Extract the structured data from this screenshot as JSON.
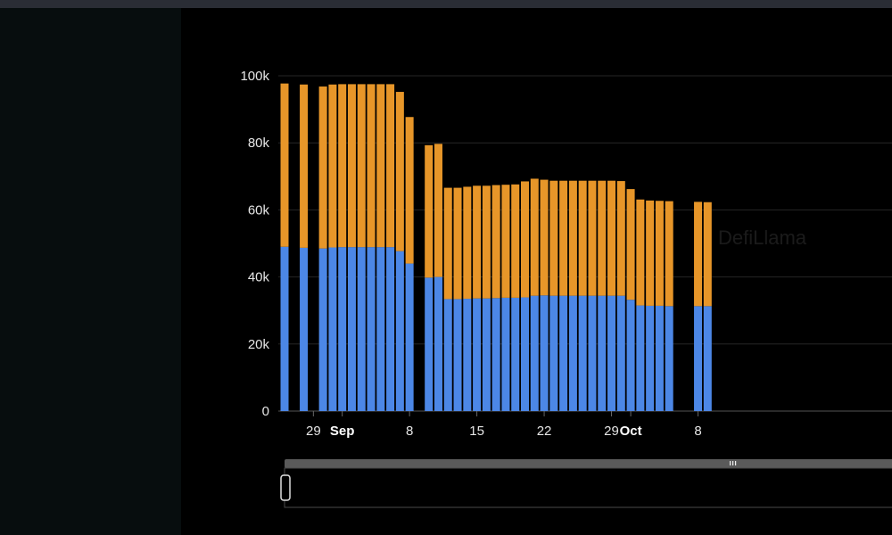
{
  "watermark": "DefiLlama",
  "scrollbar": {
    "handle_icon": "grip-lines-icon"
  },
  "chart_data": {
    "type": "bar",
    "stacked": true,
    "colors": {
      "bottom": "#4c87e6",
      "top": "#e79629",
      "grid": "#262626",
      "background": "#000000"
    },
    "ylim": [
      0,
      100000
    ],
    "y_ticks": [
      {
        "value": 0,
        "label": "0"
      },
      {
        "value": 20000,
        "label": "20k"
      },
      {
        "value": 40000,
        "label": "40k"
      },
      {
        "value": 60000,
        "label": "60k"
      },
      {
        "value": 80000,
        "label": "80k"
      },
      {
        "value": 100000,
        "label": "100k"
      }
    ],
    "x_ticks": [
      {
        "date": "2024-08-29",
        "label": "29",
        "bold": false
      },
      {
        "date": "2024-09-01",
        "label": "Sep",
        "bold": true
      },
      {
        "date": "2024-09-08",
        "label": "8",
        "bold": false
      },
      {
        "date": "2024-09-15",
        "label": "15",
        "bold": false
      },
      {
        "date": "2024-09-22",
        "label": "22",
        "bold": false
      },
      {
        "date": "2024-09-29",
        "label": "29",
        "bold": false
      },
      {
        "date": "2024-10-01",
        "label": "Oct",
        "bold": true
      },
      {
        "date": "2024-10-08",
        "label": "8",
        "bold": false
      }
    ],
    "x": [
      "2024-08-26",
      "2024-08-28",
      "2024-08-30",
      "2024-08-31",
      "2024-09-01",
      "2024-09-02",
      "2024-09-03",
      "2024-09-04",
      "2024-09-05",
      "2024-09-06",
      "2024-09-07",
      "2024-09-08",
      "2024-09-10",
      "2024-09-11",
      "2024-09-12",
      "2024-09-13",
      "2024-09-14",
      "2024-09-15",
      "2024-09-16",
      "2024-09-17",
      "2024-09-18",
      "2024-09-19",
      "2024-09-20",
      "2024-09-21",
      "2024-09-22",
      "2024-09-23",
      "2024-09-24",
      "2024-09-25",
      "2024-09-26",
      "2024-09-27",
      "2024-09-28",
      "2024-09-29",
      "2024-09-30",
      "2024-10-01",
      "2024-10-02",
      "2024-10-03",
      "2024-10-04",
      "2024-10-05",
      "2024-10-08",
      "2024-10-09"
    ],
    "series": [
      {
        "values": [
          49000,
          48700,
          48500,
          48800,
          48900,
          48900,
          48900,
          48900,
          48900,
          48900,
          47700,
          44000,
          39800,
          40000,
          33400,
          33400,
          33500,
          33600,
          33600,
          33700,
          33800,
          33800,
          33900,
          34400,
          34500,
          34400,
          34400,
          34400,
          34400,
          34400,
          34400,
          34400,
          34400,
          33200,
          31500,
          31400,
          31400,
          31300,
          31300,
          31300
        ]
      },
      {
        "values": [
          48700,
          48700,
          48300,
          48600,
          48600,
          48600,
          48600,
          48600,
          48600,
          48600,
          47500,
          43700,
          39500,
          39700,
          33200,
          33200,
          33400,
          33600,
          33600,
          33700,
          33700,
          33800,
          34600,
          34900,
          34500,
          34300,
          34300,
          34300,
          34300,
          34300,
          34300,
          34300,
          34200,
          33000,
          31600,
          31400,
          31300,
          31300,
          31100,
          31000
        ]
      }
    ]
  }
}
